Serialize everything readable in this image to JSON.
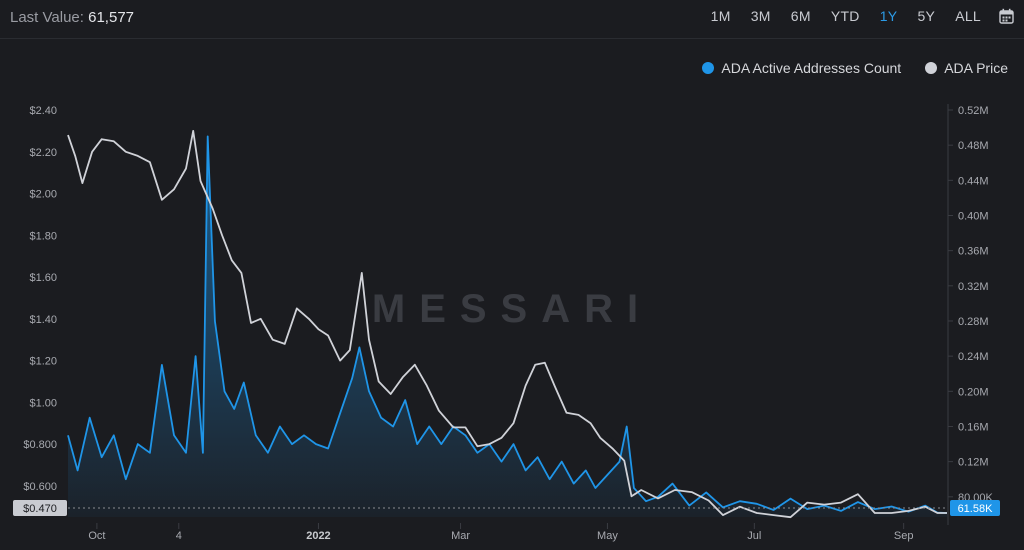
{
  "header": {
    "last_value_label": "Last Value:",
    "last_value": "61,577",
    "ranges": [
      "1M",
      "3M",
      "6M",
      "YTD",
      "1Y",
      "5Y",
      "ALL"
    ],
    "active_range": "1Y"
  },
  "legend": [
    {
      "label": "ADA Active Addresses Count",
      "color": "#1f95e8"
    },
    {
      "label": "ADA Price",
      "color": "#d0d2d8"
    }
  ],
  "watermark": "MESSARI",
  "chart_data": {
    "type": "line",
    "title": "",
    "x_labels": [
      {
        "label": "Oct",
        "date": "2021-10-01"
      },
      {
        "label": "4",
        "date": "2021-11-04"
      },
      {
        "label": "2022",
        "date": "2022-01-01"
      },
      {
        "label": "Mar",
        "date": "2022-03-01"
      },
      {
        "label": "May",
        "date": "2022-05-01"
      },
      {
        "label": "Jul",
        "date": "2022-07-01"
      },
      {
        "label": "Sep",
        "date": "2022-09-01"
      }
    ],
    "x_range": [
      "2021-09-19",
      "2022-09-19"
    ],
    "left_axis": {
      "ticks": [
        "$2.40",
        "$2.20",
        "$2.00",
        "$1.80",
        "$1.60",
        "$1.40",
        "$1.20",
        "$1.00",
        "$0.800",
        "$0.600"
      ],
      "tick_values": [
        2.4,
        2.2,
        2.0,
        1.8,
        1.6,
        1.4,
        1.2,
        1.0,
        0.8,
        0.6
      ],
      "range": [
        0.47,
        2.4
      ],
      "last_label": "$0.470"
    },
    "right_axis": {
      "ticks": [
        "0.52M",
        "0.48M",
        "0.44M",
        "0.40M",
        "0.36M",
        "0.32M",
        "0.28M",
        "0.24M",
        "0.20M",
        "0.16M",
        "0.12M",
        "80.00K"
      ],
      "tick_values": [
        520000,
        480000,
        440000,
        400000,
        360000,
        320000,
        280000,
        240000,
        200000,
        160000,
        120000,
        80000
      ],
      "range": [
        61577,
        520000
      ],
      "last_label": "61.58K"
    },
    "series": [
      {
        "name": "ADA Price",
        "axis": "left",
        "color": "#d0d2d8",
        "points": [
          [
            "2021-09-19",
            2.28
          ],
          [
            "2021-09-22",
            2.18
          ],
          [
            "2021-09-25",
            2.05
          ],
          [
            "2021-09-29",
            2.2
          ],
          [
            "2021-10-03",
            2.26
          ],
          [
            "2021-10-08",
            2.25
          ],
          [
            "2021-10-13",
            2.2
          ],
          [
            "2021-10-18",
            2.18
          ],
          [
            "2021-10-23",
            2.15
          ],
          [
            "2021-10-28",
            1.97
          ],
          [
            "2021-11-02",
            2.02
          ],
          [
            "2021-11-07",
            2.12
          ],
          [
            "2021-11-10",
            2.3
          ],
          [
            "2021-11-13",
            2.06
          ],
          [
            "2021-11-18",
            1.93
          ],
          [
            "2021-11-22",
            1.8
          ],
          [
            "2021-11-26",
            1.68
          ],
          [
            "2021-11-30",
            1.62
          ],
          [
            "2021-12-04",
            1.38
          ],
          [
            "2021-12-08",
            1.4
          ],
          [
            "2021-12-13",
            1.3
          ],
          [
            "2021-12-18",
            1.28
          ],
          [
            "2021-12-23",
            1.45
          ],
          [
            "2021-12-28",
            1.4
          ],
          [
            "2022-01-01",
            1.35
          ],
          [
            "2022-01-05",
            1.32
          ],
          [
            "2022-01-10",
            1.2
          ],
          [
            "2022-01-14",
            1.25
          ],
          [
            "2022-01-19",
            1.62
          ],
          [
            "2022-01-22",
            1.3
          ],
          [
            "2022-01-26",
            1.1
          ],
          [
            "2022-01-31",
            1.04
          ],
          [
            "2022-02-05",
            1.12
          ],
          [
            "2022-02-10",
            1.18
          ],
          [
            "2022-02-15",
            1.08
          ],
          [
            "2022-02-20",
            0.96
          ],
          [
            "2022-02-26",
            0.88
          ],
          [
            "2022-03-03",
            0.88
          ],
          [
            "2022-03-08",
            0.79
          ],
          [
            "2022-03-13",
            0.8
          ],
          [
            "2022-03-18",
            0.83
          ],
          [
            "2022-03-23",
            0.9
          ],
          [
            "2022-03-28",
            1.08
          ],
          [
            "2022-04-01",
            1.18
          ],
          [
            "2022-04-05",
            1.19
          ],
          [
            "2022-04-09",
            1.08
          ],
          [
            "2022-04-14",
            0.95
          ],
          [
            "2022-04-19",
            0.94
          ],
          [
            "2022-04-24",
            0.9
          ],
          [
            "2022-04-28",
            0.83
          ],
          [
            "2022-05-03",
            0.78
          ],
          [
            "2022-05-08",
            0.72
          ],
          [
            "2022-05-11",
            0.55
          ],
          [
            "2022-05-15",
            0.58
          ],
          [
            "2022-05-22",
            0.54
          ],
          [
            "2022-05-29",
            0.58
          ],
          [
            "2022-06-05",
            0.57
          ],
          [
            "2022-06-12",
            0.53
          ],
          [
            "2022-06-18",
            0.46
          ],
          [
            "2022-06-25",
            0.5
          ],
          [
            "2022-07-02",
            0.47
          ],
          [
            "2022-07-09",
            0.46
          ],
          [
            "2022-07-16",
            0.45
          ],
          [
            "2022-07-23",
            0.52
          ],
          [
            "2022-07-30",
            0.51
          ],
          [
            "2022-08-06",
            0.52
          ],
          [
            "2022-08-13",
            0.56
          ],
          [
            "2022-08-20",
            0.47
          ],
          [
            "2022-08-27",
            0.47
          ],
          [
            "2022-09-03",
            0.48
          ],
          [
            "2022-09-10",
            0.5
          ],
          [
            "2022-09-15",
            0.47
          ],
          [
            "2022-09-19",
            0.47
          ]
        ]
      },
      {
        "name": "ADA Active Addresses Count",
        "axis": "right",
        "color": "#1f95e8",
        "points": [
          [
            "2021-09-19",
            150000
          ],
          [
            "2021-09-23",
            110000
          ],
          [
            "2021-09-28",
            170000
          ],
          [
            "2021-10-03",
            125000
          ],
          [
            "2021-10-08",
            150000
          ],
          [
            "2021-10-13",
            100000
          ],
          [
            "2021-10-18",
            140000
          ],
          [
            "2021-10-23",
            130000
          ],
          [
            "2021-10-28",
            230000
          ],
          [
            "2021-11-02",
            150000
          ],
          [
            "2021-11-07",
            130000
          ],
          [
            "2021-11-11",
            240000
          ],
          [
            "2021-11-14",
            130000
          ],
          [
            "2021-11-16",
            490000
          ],
          [
            "2021-11-19",
            280000
          ],
          [
            "2021-11-23",
            200000
          ],
          [
            "2021-11-27",
            180000
          ],
          [
            "2021-12-01",
            210000
          ],
          [
            "2021-12-06",
            150000
          ],
          [
            "2021-12-11",
            130000
          ],
          [
            "2021-12-16",
            160000
          ],
          [
            "2021-12-21",
            140000
          ],
          [
            "2021-12-26",
            150000
          ],
          [
            "2021-12-31",
            140000
          ],
          [
            "2022-01-05",
            135000
          ],
          [
            "2022-01-10",
            175000
          ],
          [
            "2022-01-15",
            215000
          ],
          [
            "2022-01-18",
            250000
          ],
          [
            "2022-01-22",
            200000
          ],
          [
            "2022-01-27",
            170000
          ],
          [
            "2022-02-01",
            160000
          ],
          [
            "2022-02-06",
            190000
          ],
          [
            "2022-02-11",
            140000
          ],
          [
            "2022-02-16",
            160000
          ],
          [
            "2022-02-21",
            140000
          ],
          [
            "2022-02-26",
            160000
          ],
          [
            "2022-03-03",
            150000
          ],
          [
            "2022-03-08",
            130000
          ],
          [
            "2022-03-13",
            140000
          ],
          [
            "2022-03-18",
            120000
          ],
          [
            "2022-03-23",
            140000
          ],
          [
            "2022-03-28",
            110000
          ],
          [
            "2022-04-02",
            125000
          ],
          [
            "2022-04-07",
            100000
          ],
          [
            "2022-04-12",
            120000
          ],
          [
            "2022-04-17",
            95000
          ],
          [
            "2022-04-22",
            110000
          ],
          [
            "2022-04-26",
            90000
          ],
          [
            "2022-05-06",
            120000
          ],
          [
            "2022-05-09",
            160000
          ],
          [
            "2022-05-12",
            90000
          ],
          [
            "2022-05-17",
            75000
          ],
          [
            "2022-05-22",
            80000
          ],
          [
            "2022-05-28",
            95000
          ],
          [
            "2022-06-04",
            70000
          ],
          [
            "2022-06-11",
            85000
          ],
          [
            "2022-06-18",
            68000
          ],
          [
            "2022-06-25",
            75000
          ],
          [
            "2022-07-02",
            72000
          ],
          [
            "2022-07-09",
            65000
          ],
          [
            "2022-07-16",
            78000
          ],
          [
            "2022-07-23",
            66000
          ],
          [
            "2022-07-30",
            70000
          ],
          [
            "2022-08-06",
            64000
          ],
          [
            "2022-08-13",
            74000
          ],
          [
            "2022-08-20",
            66000
          ],
          [
            "2022-08-27",
            69000
          ],
          [
            "2022-09-03",
            63000
          ],
          [
            "2022-09-10",
            70000
          ],
          [
            "2022-09-15",
            62000
          ],
          [
            "2022-09-19",
            61577
          ]
        ]
      }
    ]
  }
}
